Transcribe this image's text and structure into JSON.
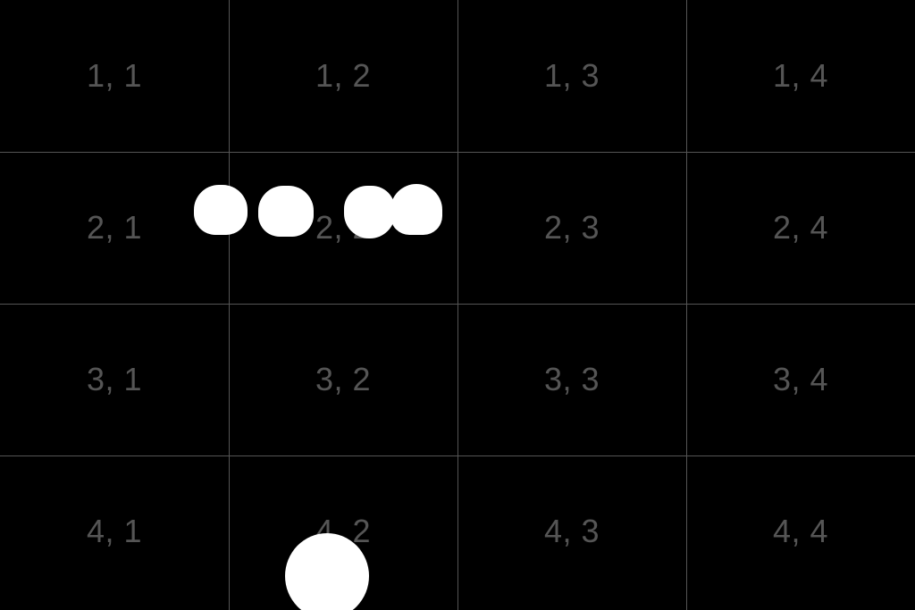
{
  "grid": {
    "line_color": "#555555",
    "label_color": "#555555",
    "background": "#000000",
    "cells": [
      [
        "1, 1",
        "1, 2",
        "1, 3",
        "1, 4"
      ],
      [
        "2, 1",
        "2, 2",
        "2, 3",
        "2, 4"
      ],
      [
        "3, 1",
        "3, 2",
        "3, 3",
        "3, 4"
      ],
      [
        "4, 1",
        "4, 2",
        "4, 3",
        "4, 4"
      ]
    ]
  },
  "blobs": {
    "color": "#ffffff",
    "count": 5
  }
}
